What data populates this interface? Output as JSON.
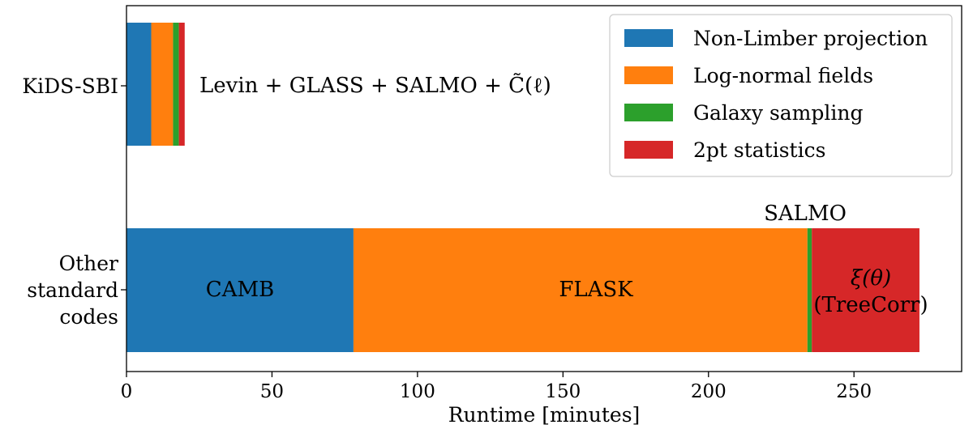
{
  "chart_data": {
    "type": "bar",
    "orientation": "horizontal",
    "stacked": true,
    "xlabel": "Runtime [minutes]",
    "xlim": [
      0,
      287
    ],
    "xticks": [
      0,
      50,
      100,
      150,
      200,
      250
    ],
    "grid": false,
    "legend_position": "top-right",
    "categories": [
      {
        "lines": [
          "KiDS-SBI"
        ]
      },
      {
        "lines": [
          "Other",
          "standard",
          "codes"
        ]
      }
    ],
    "series": [
      {
        "name": "Non-Limber projection",
        "color": "#1f77b4",
        "values": [
          8.5,
          78
        ]
      },
      {
        "name": "Log-normal fields",
        "color": "#ff7f0e",
        "values": [
          7.5,
          156
        ]
      },
      {
        "name": "Galaxy sampling",
        "color": "#2ca02c",
        "values": [
          2,
          1.5
        ]
      },
      {
        "name": "2pt statistics",
        "color": "#d62728",
        "values": [
          2,
          37
        ]
      }
    ],
    "annotations": {
      "kids_label": "Levin + GLASS + SALMO + C̃(ℓ)",
      "camb": "CAMB",
      "flask": "FLASK",
      "salmo": "SALMO",
      "xi_line1": "ξ(θ)",
      "xi_line2": "(TreeCorr)"
    }
  }
}
